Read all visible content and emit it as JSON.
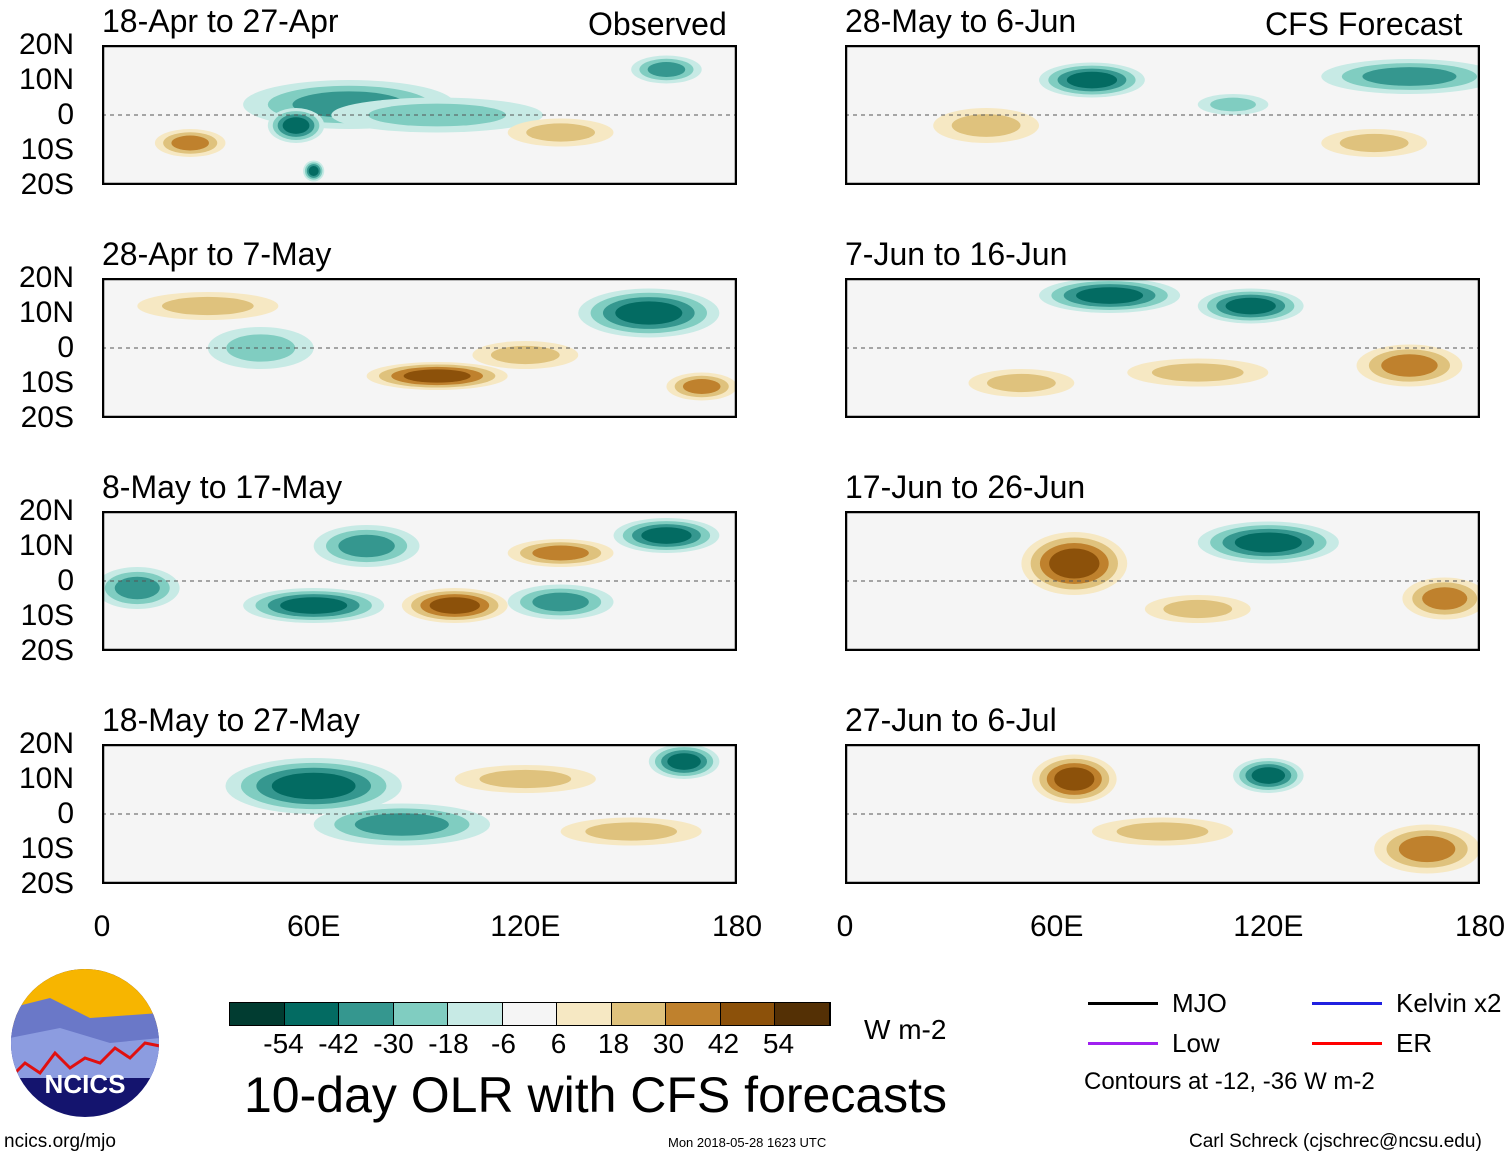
{
  "column_labels": {
    "left": "Observed",
    "right": "CFS Forecast"
  },
  "panels": [
    {
      "title": "18-Apr to 27-Apr",
      "col": "left",
      "row": 0
    },
    {
      "title": "28-Apr to 7-May",
      "col": "left",
      "row": 1
    },
    {
      "title": "8-May to 17-May",
      "col": "left",
      "row": 2
    },
    {
      "title": "18-May to 27-May",
      "col": "left",
      "row": 3
    },
    {
      "title": "28-May to 6-Jun",
      "col": "right",
      "row": 0
    },
    {
      "title": "7-Jun to 16-Jun",
      "col": "right",
      "row": 1
    },
    {
      "title": "17-Jun to 26-Jun",
      "col": "right",
      "row": 2
    },
    {
      "title": "27-Jun to 6-Jul",
      "col": "right",
      "row": 3
    }
  ],
  "lat_ticks": [
    "20N",
    "10N",
    "0",
    "10S",
    "20S"
  ],
  "lon_ticks": [
    "0",
    "60E",
    "120E",
    "180"
  ],
  "colorbar": {
    "labels": [
      "-54",
      "-42",
      "-30",
      "-18",
      "-6",
      "6",
      "18",
      "30",
      "42",
      "54"
    ],
    "colors": [
      "#013c31",
      "#036b62",
      "#35978f",
      "#80cdc1",
      "#c7eae5",
      "#f5f5f5",
      "#f6e8c3",
      "#dfc27d",
      "#bf812d",
      "#8c510a",
      "#543005"
    ],
    "units": "W m-2"
  },
  "title": "10-day OLR with CFS forecasts",
  "legend": {
    "items": [
      {
        "label": "MJO",
        "color": "#000000"
      },
      {
        "label": "Kelvin x2",
        "color": "#2020e0"
      },
      {
        "label": "Low",
        "color": "#a020f0"
      },
      {
        "label": "ER",
        "color": "#ff0000"
      }
    ],
    "note": "Contours at -12, -36 W m-2"
  },
  "footer": {
    "left": "ncics.org/mjo",
    "center": "Mon 2018-05-28 1623 UTC",
    "right": "Carl Schreck (cjschrec@ncsu.edu)"
  },
  "logo_text": "NCICS",
  "anomalies": [
    [
      [
        70,
        3,
        30,
        7,
        -30
      ],
      [
        55,
        -3,
        8,
        5,
        -42
      ],
      [
        95,
        0,
        30,
        5,
        -18
      ],
      [
        25,
        -8,
        10,
        4,
        30
      ],
      [
        160,
        13,
        10,
        4,
        -30
      ],
      [
        130,
        -5,
        15,
        4,
        18
      ],
      [
        60,
        -16,
        3,
        3,
        -42
      ]
    ],
    [
      [
        155,
        10,
        20,
        7,
        -42
      ],
      [
        95,
        -8,
        20,
        4,
        42
      ],
      [
        45,
        0,
        15,
        6,
        -18
      ],
      [
        170,
        -11,
        10,
        4,
        30
      ],
      [
        120,
        -2,
        15,
        4,
        18
      ],
      [
        30,
        12,
        20,
        4,
        18
      ]
    ],
    [
      [
        60,
        -7,
        20,
        5,
        -42
      ],
      [
        75,
        10,
        15,
        6,
        -30
      ],
      [
        100,
        -7,
        15,
        5,
        42
      ],
      [
        130,
        -6,
        15,
        5,
        -30
      ],
      [
        160,
        13,
        15,
        5,
        -42
      ],
      [
        10,
        -2,
        12,
        6,
        -30
      ],
      [
        130,
        8,
        15,
        4,
        30
      ]
    ],
    [
      [
        60,
        8,
        25,
        8,
        -42
      ],
      [
        85,
        -3,
        25,
        6,
        -30
      ],
      [
        165,
        15,
        10,
        5,
        -42
      ],
      [
        120,
        10,
        20,
        4,
        18
      ],
      [
        150,
        -5,
        20,
        4,
        18
      ]
    ],
    [
      [
        70,
        10,
        15,
        5,
        -42
      ],
      [
        160,
        11,
        25,
        5,
        -30
      ],
      [
        110,
        3,
        10,
        3,
        -18
      ],
      [
        40,
        -3,
        15,
        5,
        18
      ],
      [
        150,
        -8,
        15,
        4,
        18
      ]
    ],
    [
      [
        75,
        15,
        20,
        5,
        -42
      ],
      [
        115,
        12,
        15,
        5,
        -42
      ],
      [
        100,
        -7,
        20,
        4,
        18
      ],
      [
        160,
        -5,
        15,
        6,
        30
      ],
      [
        50,
        -10,
        15,
        4,
        18
      ]
    ],
    [
      [
        65,
        5,
        15,
        9,
        42
      ],
      [
        120,
        11,
        20,
        6,
        -42
      ],
      [
        170,
        -5,
        12,
        6,
        30
      ],
      [
        100,
        -8,
        15,
        4,
        18
      ]
    ],
    [
      [
        65,
        10,
        12,
        7,
        42
      ],
      [
        120,
        11,
        10,
        5,
        -42
      ],
      [
        165,
        -10,
        15,
        7,
        30
      ],
      [
        90,
        -5,
        20,
        4,
        18
      ]
    ]
  ]
}
